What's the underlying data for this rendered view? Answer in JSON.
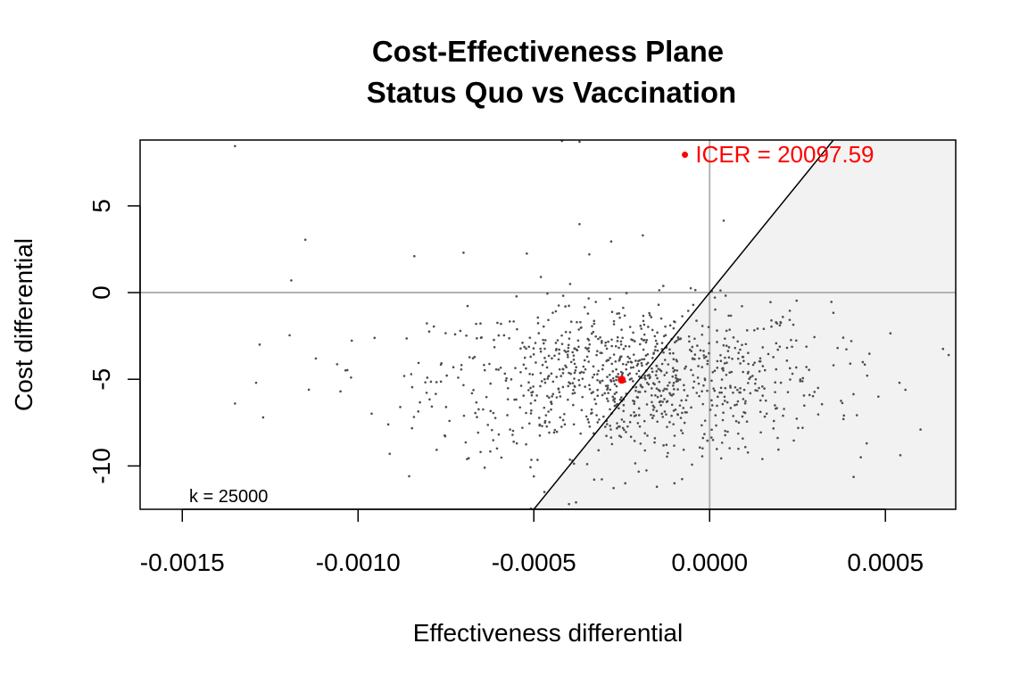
{
  "chart_data": {
    "type": "scatter",
    "title": "Cost-Effectiveness Plane",
    "subtitle": "Status Quo vs Vaccination",
    "xlabel": "Effectiveness differential",
    "ylabel": "Cost differential",
    "xlim": [
      -0.00162,
      0.0007
    ],
    "ylim": [
      -12.5,
      8.8
    ],
    "x_ticks": [
      -0.0015,
      -0.001,
      -0.0005,
      0.0,
      0.0005
    ],
    "x_tick_labels": [
      "-0.0015",
      "-0.0010",
      "-0.0005",
      "0.0000",
      "0.0005"
    ],
    "y_ticks": [
      -10,
      -5,
      0,
      5
    ],
    "y_tick_labels": [
      "-10",
      "-5",
      "0",
      "5"
    ],
    "wtp_k": 25000,
    "k_label": "k = 25000",
    "icer_label": "• ICER = 20097.59",
    "icer_point": {
      "x": -0.00025,
      "y": -5.03
    },
    "colors": {
      "points": "#4d4d4d",
      "icer": "#ff0000",
      "region": "#f2f2f2",
      "reference": "#b3b3b3",
      "wtp_line": "#000000"
    },
    "simulation_summary": {
      "n": 1000,
      "mean_x": -0.00022,
      "sd_x": 0.00028,
      "mean_y": -5.0,
      "sd_y": 2.2
    },
    "points": [
      {
        "x": -0.00135,
        "y": 8.45
      },
      {
        "x": -0.00042,
        "y": 8.75
      },
      {
        "x": -0.00037,
        "y": 8.7
      },
      {
        "x": -0.00115,
        "y": 3.05
      },
      {
        "x": -0.00037,
        "y": 3.95
      },
      {
        "x": -0.00028,
        "y": 2.95
      },
      {
        "x": -0.00019,
        "y": 3.3
      },
      {
        "x": 4e-05,
        "y": 4.15
      },
      {
        "x": -0.00119,
        "y": 0.7
      },
      {
        "x": -0.00084,
        "y": 2.1
      },
      {
        "x": -0.0007,
        "y": 2.3
      },
      {
        "x": -0.00052,
        "y": 2.25
      },
      {
        "x": -0.00048,
        "y": 0.9
      },
      {
        "x": -0.00128,
        "y": -3.0
      },
      {
        "x": -0.00129,
        "y": -5.2
      },
      {
        "x": -0.00135,
        "y": -6.4
      },
      {
        "x": -0.00127,
        "y": -7.2
      },
      {
        "x": -0.00114,
        "y": -5.6
      },
      {
        "x": -0.00112,
        "y": -3.8
      },
      {
        "x": -0.00105,
        "y": -5.7
      },
      {
        "x": -0.00102,
        "y": -4.9
      },
      {
        "x": -0.00091,
        "y": -9.3
      },
      {
        "x": -0.00088,
        "y": -6.6
      },
      {
        "x": -0.00074,
        "y": -7.4
      },
      {
        "x": -0.00069,
        "y": -9.6
      },
      {
        "x": -0.00064,
        "y": -10.1
      },
      {
        "x": -0.0005,
        "y": -10.6
      },
      {
        "x": -0.00047,
        "y": -11.5
      },
      {
        "x": -0.0004,
        "y": -12.2
      },
      {
        "x": -0.00038,
        "y": -12.1
      },
      {
        "x": 0.0006,
        "y": -7.9
      },
      {
        "x": 0.00068,
        "y": -3.6
      },
      {
        "x": 0.00054,
        "y": -5.2
      },
      {
        "x": 0.00048,
        "y": -6.0
      },
      {
        "x": 0.00043,
        "y": -9.5
      },
      {
        "x": 0.0004,
        "y": -4.1
      },
      {
        "x": 0.00038,
        "y": -2.6
      },
      {
        "x": -0.0001,
        "y": -11.0
      },
      {
        "x": -0.00015,
        "y": -11.2
      },
      {
        "x": -0.00024,
        "y": -11.0
      },
      {
        "x": 0.00015,
        "y": -9.6
      }
    ]
  }
}
